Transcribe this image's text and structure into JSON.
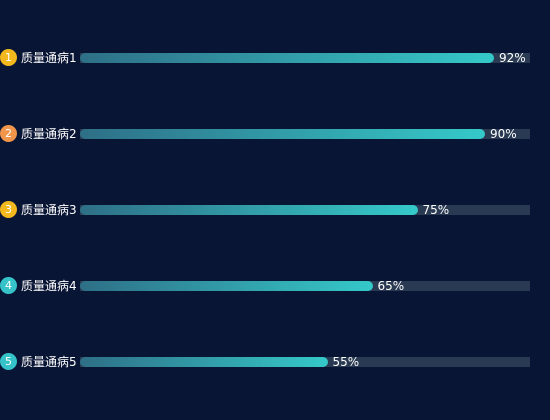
{
  "chart_data": {
    "type": "bar",
    "orientation": "horizontal",
    "xlim": [
      0,
      100
    ],
    "categories": [
      "质量通病1",
      "质量通病2",
      "质量通病3",
      "质量通病4",
      "质量通病5"
    ],
    "values": [
      92,
      90,
      75,
      65,
      55
    ],
    "value_labels": [
      "92%",
      "90%",
      "75%",
      "65%",
      "55%"
    ],
    "ranks": [
      "1",
      "2",
      "3",
      "4",
      "5"
    ],
    "rank_colors": [
      "#f2b81e",
      "#f0954a",
      "#f2b81e",
      "#35c2c8",
      "#35c2c8"
    ],
    "fill_gradient": [
      "#2e6f86",
      "#35c9c9"
    ],
    "track_color": "#2a3a52",
    "background": "#091535",
    "grid": false,
    "legend": "none"
  }
}
